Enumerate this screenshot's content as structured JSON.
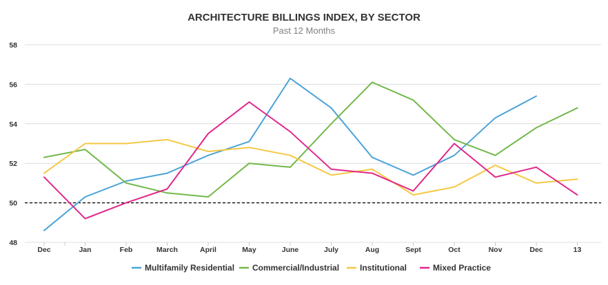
{
  "chart_data": {
    "type": "line",
    "title": "ARCHITECTURE BILLINGS INDEX, BY SECTOR",
    "subtitle": "Past 12 Months",
    "xlabel": "",
    "ylabel": "",
    "categories": [
      "Dec",
      "Jan",
      "Feb",
      "March",
      "April",
      "May",
      "June",
      "July",
      "Aug",
      "Sept",
      "Oct",
      "Nov",
      "Dec",
      "13"
    ],
    "ylim": [
      48,
      58
    ],
    "yticks": [
      48,
      50,
      52,
      54,
      56,
      58
    ],
    "reference_line": 50,
    "grid": true,
    "legend_position": "bottom",
    "series": [
      {
        "name": "Multifamily Residential",
        "color": "#4aa3d8",
        "values": [
          48.6,
          50.3,
          51.1,
          51.5,
          52.4,
          53.1,
          56.3,
          54.8,
          52.3,
          51.4,
          52.4,
          54.3,
          55.4,
          null
        ]
      },
      {
        "name": "Commercial/Industrial",
        "color": "#72b84a",
        "values": [
          52.3,
          52.7,
          51.0,
          50.5,
          50.3,
          52.0,
          51.8,
          54.0,
          56.1,
          55.2,
          53.2,
          52.4,
          53.8,
          54.8
        ]
      },
      {
        "name": "Institutional",
        "color": "#f5c842",
        "values": [
          51.5,
          53.0,
          53.0,
          53.2,
          52.6,
          52.8,
          52.4,
          51.4,
          51.7,
          50.4,
          50.8,
          51.9,
          51.0,
          51.2
        ]
      },
      {
        "name": "Mixed Practice",
        "color": "#e0278a",
        "values": [
          51.3,
          49.2,
          50.0,
          50.7,
          53.5,
          55.1,
          53.6,
          51.7,
          51.5,
          50.6,
          53.0,
          51.3,
          51.8,
          50.4
        ]
      }
    ]
  }
}
